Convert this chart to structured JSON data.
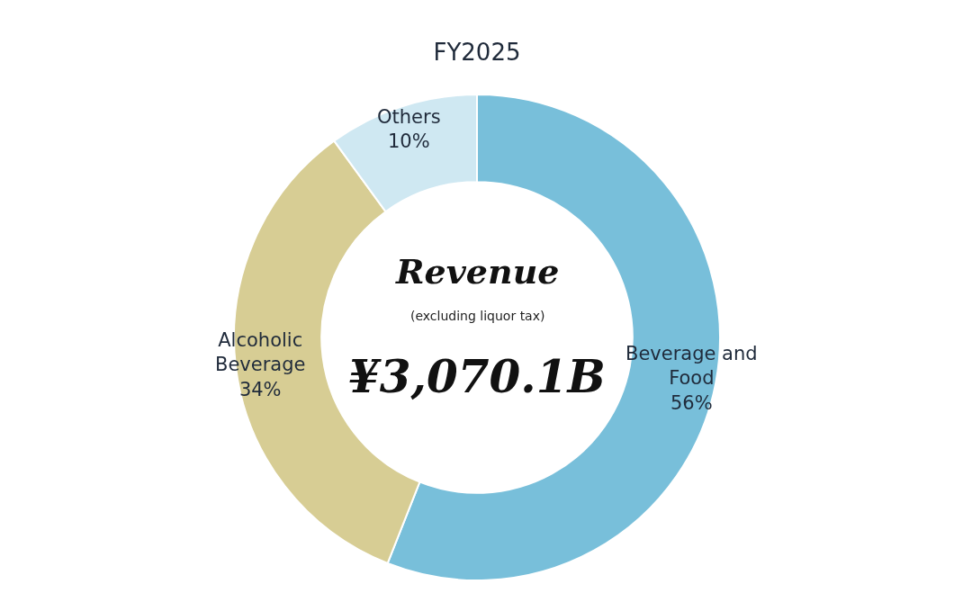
{
  "chart_data": {
    "type": "donut",
    "title": "FY2025",
    "categories": [
      "Beverage and Food",
      "Alcoholic Beverage",
      "Others"
    ],
    "values": [
      56,
      34,
      10
    ],
    "value_labels": [
      "56%",
      "34%",
      "10%"
    ],
    "colors": [
      "#78bfda",
      "#d7cd94",
      "#cfe8f2"
    ],
    "annotations": [
      "Revenue",
      "(excluding liquor tax)",
      "¥3,070.1B"
    ],
    "legend": false
  }
}
